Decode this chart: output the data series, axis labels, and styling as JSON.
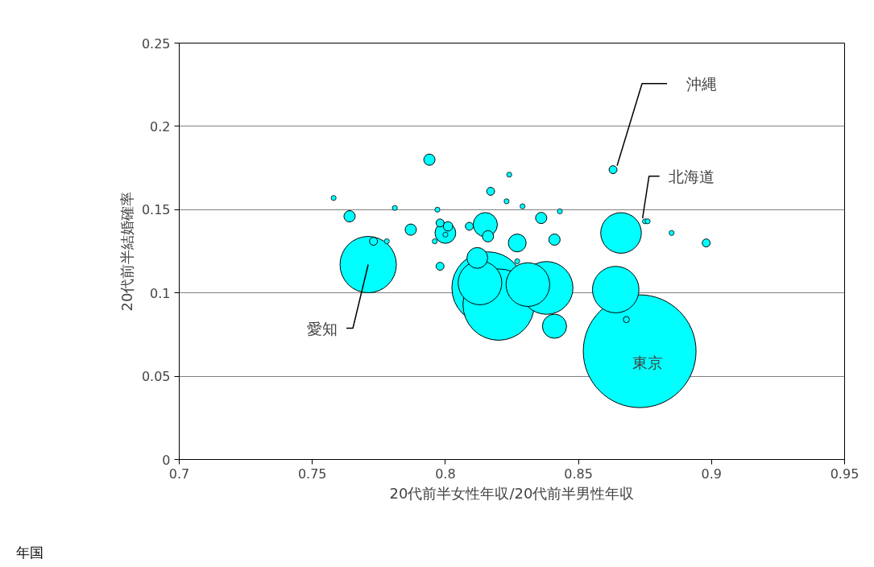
{
  "chart_data": {
    "type": "bubble",
    "xlabel": "20代前半女性年収/20代前半男性年収",
    "ylabel": "20代前半結婚確率",
    "xlim": [
      0.7,
      0.95
    ],
    "xticks": [
      0.7,
      0.75,
      0.8,
      0.85,
      0.9,
      0.95
    ],
    "ylim": [
      0,
      0.25
    ],
    "yticks": [
      0,
      0.05,
      0.1,
      0.15,
      0.2,
      0.25
    ],
    "grid": "y",
    "marker": "circle",
    "series": [
      {
        "color": "#00ffff",
        "x": [
          0.873,
          0.816,
          0.82,
          0.771,
          0.838,
          0.864,
          0.813,
          0.831,
          0.866,
          0.815,
          0.841,
          0.8,
          0.812,
          0.827,
          0.764,
          0.794,
          0.787,
          0.836,
          0.841,
          0.816,
          0.801,
          0.798,
          0.773,
          0.809,
          0.817,
          0.863,
          0.898,
          0.798,
          0.868,
          0.758,
          0.797,
          0.778,
          0.796,
          0.824,
          0.823,
          0.829,
          0.827,
          0.875,
          0.876,
          0.781,
          0.8,
          0.843,
          0.885
        ],
        "values": [
          0.065,
          0.103,
          0.093,
          0.117,
          0.103,
          0.102,
          0.106,
          0.105,
          0.136,
          0.141,
          0.08,
          0.136,
          0.121,
          0.13,
          0.146,
          0.18,
          0.138,
          0.145,
          0.132,
          0.134,
          0.14,
          0.142,
          0.131,
          0.14,
          0.161,
          0.174,
          0.13,
          0.116,
          0.084,
          0.157,
          0.15,
          0.131,
          0.131,
          0.171,
          0.155,
          0.152,
          0.119,
          0.143,
          0.143,
          0.151,
          0.135,
          0.149,
          0.136
        ],
        "sizes": [
          1,
          0.41,
          0.4,
          0.25,
          0.22,
          0.17,
          0.15,
          0.15,
          0.13,
          0.046,
          0.046,
          0.034,
          0.034,
          0.025,
          0.01,
          0.01,
          0.01,
          0.01,
          0.01,
          0.01,
          0.007,
          0.005,
          0.005,
          0.005,
          0.005,
          0.005,
          0.005,
          0.005,
          0.003,
          0.002,
          0.002,
          0.002,
          0.002,
          0.002,
          0.002,
          0.002,
          0.002,
          0.002,
          0.002,
          0.002,
          0.002,
          0.002,
          0.002
        ]
      }
    ],
    "annotations": [
      {
        "text": "沖縄",
        "x": 0.863,
        "y": 0.174
      },
      {
        "text": "北海道",
        "x": 0.875,
        "y": 0.143
      },
      {
        "text": "愛知",
        "x": 0.771,
        "y": 0.117
      },
      {
        "text": "東京",
        "x": 0.873,
        "y": 0.065
      },
      "年国"
    ]
  }
}
